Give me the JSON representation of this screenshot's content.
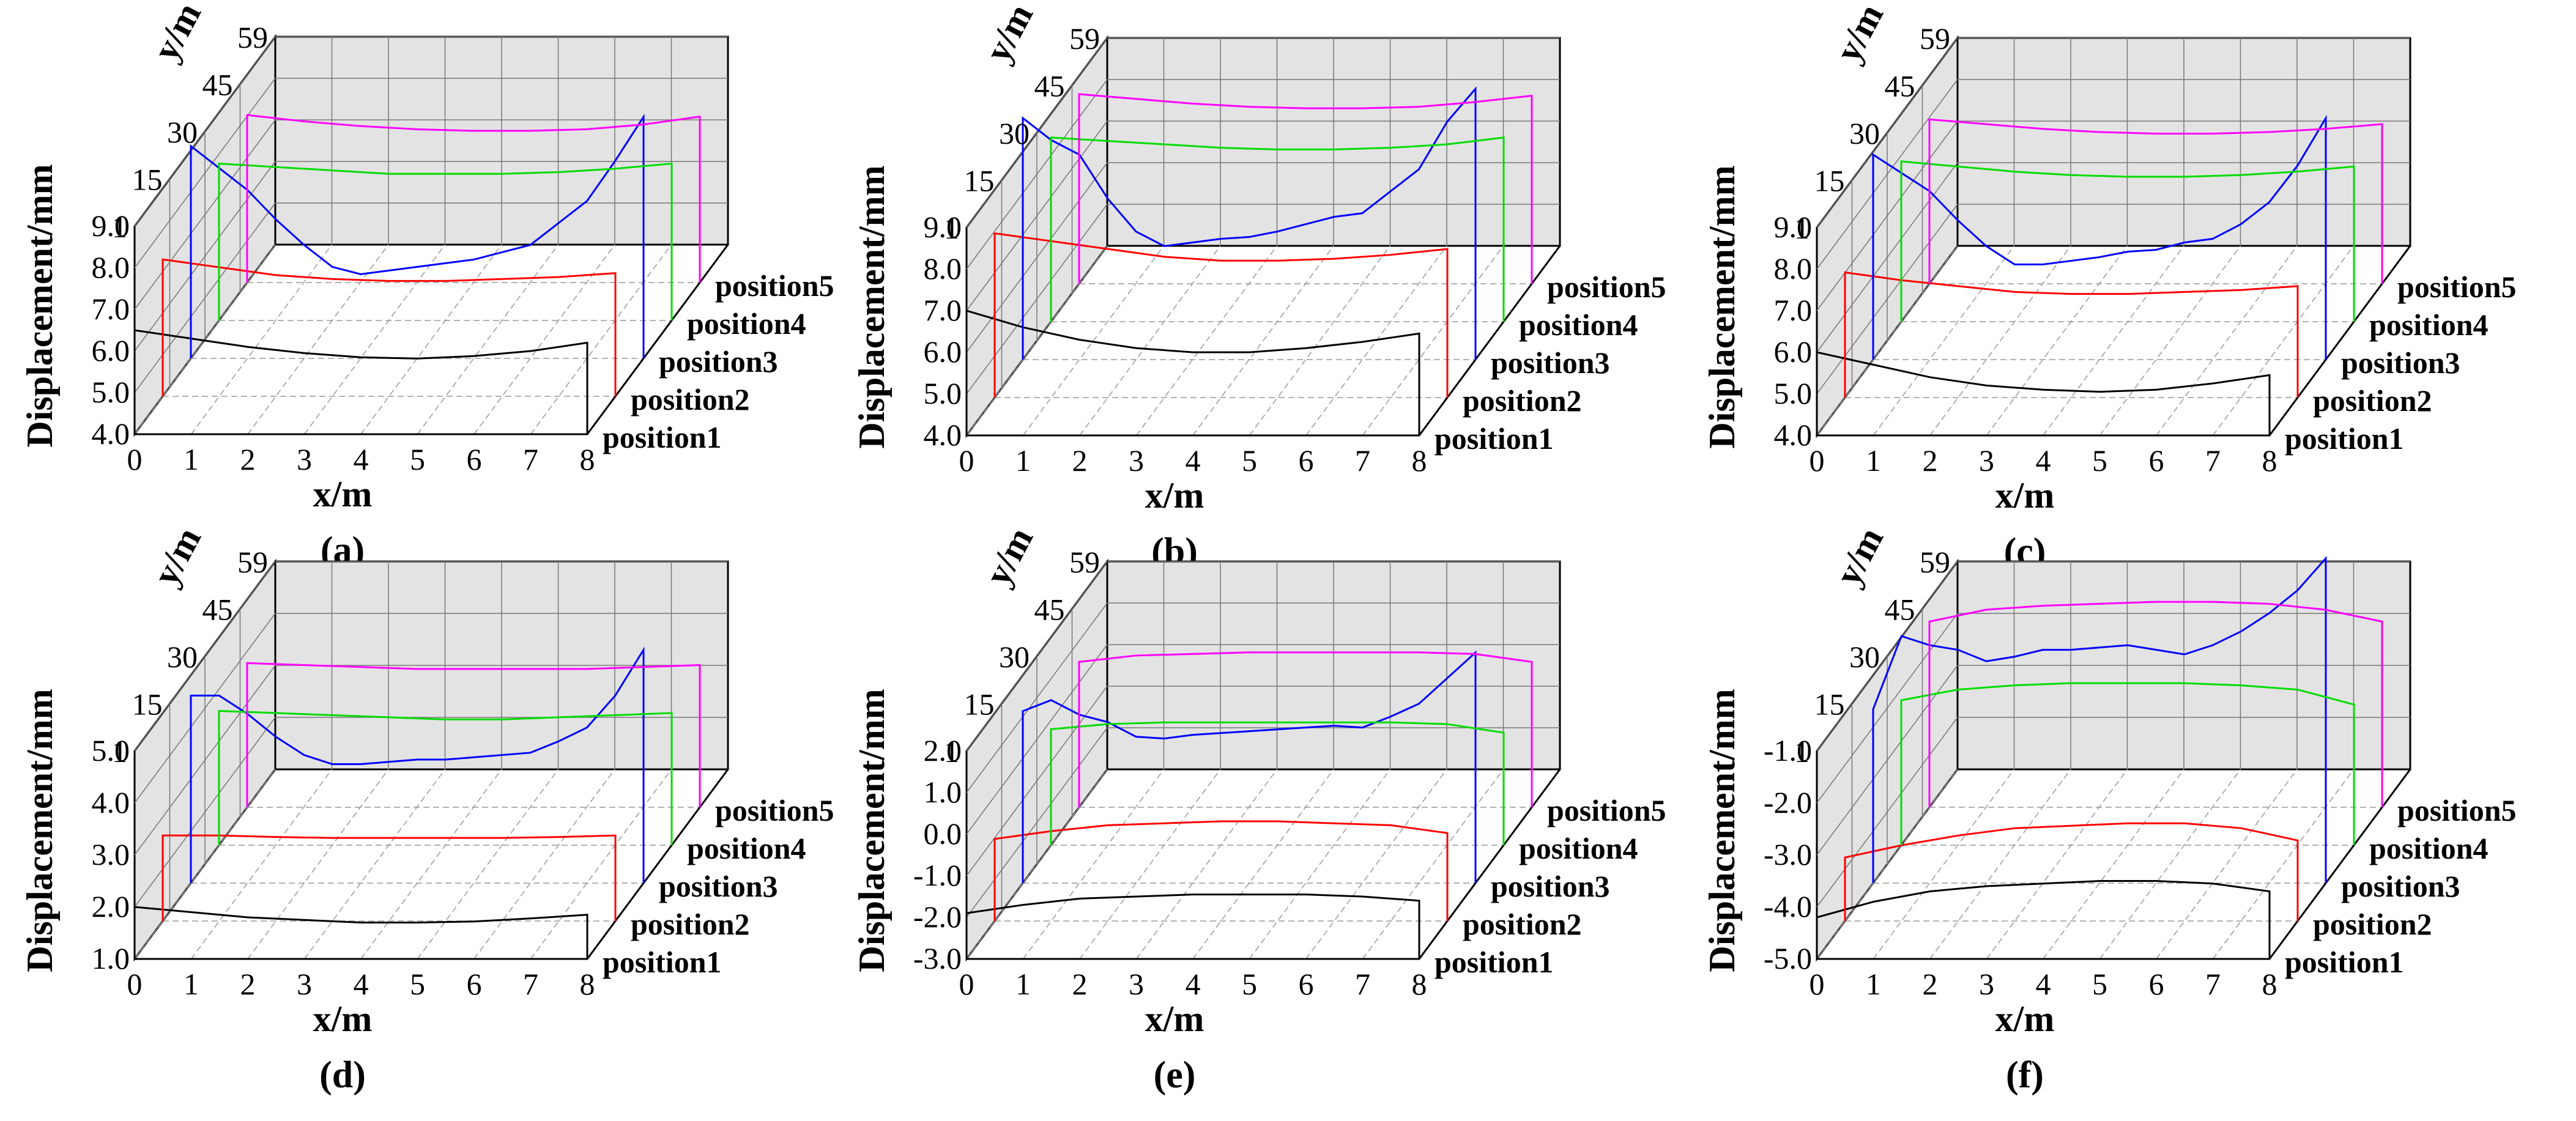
{
  "chart_data": [
    {
      "panel_label": "(a)",
      "type": "line",
      "xlabel": "x/m",
      "ylabel": "y/m",
      "zlabel": "Displacement/mm",
      "xlim": [
        0,
        8
      ],
      "zlim": [
        4.0,
        9.0
      ],
      "x_ticks": [
        "0",
        "1",
        "2",
        "3",
        "4",
        "5",
        "6",
        "7",
        "8"
      ],
      "y_ticks": [
        "1",
        "15",
        "30",
        "45",
        "59"
      ],
      "z_ticks": [
        "4.0",
        "5.0",
        "6.0",
        "7.0",
        "8.0",
        "9.0"
      ],
      "series": [
        {
          "name": "position1",
          "color": "#000000",
          "x": [
            0,
            1,
            2,
            3,
            4,
            5,
            6,
            7,
            8
          ],
          "values": [
            6.5,
            6.3,
            6.1,
            5.95,
            5.85,
            5.82,
            5.88,
            6.0,
            6.2
          ]
        },
        {
          "name": "position2",
          "color": "#ff0000",
          "x": [
            0,
            1,
            2,
            3,
            4,
            5,
            6,
            7,
            8
          ],
          "values": [
            7.5,
            7.3,
            7.1,
            7.0,
            6.95,
            6.95,
            7.0,
            7.05,
            7.15
          ]
        },
        {
          "name": "position3",
          "color": "#0000ff",
          "x": [
            0,
            0.5,
            1,
            1.5,
            2,
            2.5,
            3,
            3.5,
            4,
            4.5,
            5,
            5.5,
            6,
            6.5,
            7,
            7.5,
            8
          ],
          "values": [
            9.8,
            9.2,
            8.6,
            7.8,
            7.1,
            6.5,
            6.3,
            6.4,
            6.5,
            6.6,
            6.7,
            6.9,
            7.1,
            7.7,
            8.3,
            9.4,
            10.6
          ]
        },
        {
          "name": "position4",
          "color": "#00dd00",
          "x": [
            0,
            1,
            2,
            3,
            4,
            5,
            6,
            7,
            8
          ],
          "values": [
            8.6,
            8.5,
            8.4,
            8.3,
            8.3,
            8.3,
            8.35,
            8.45,
            8.6
          ]
        },
        {
          "name": "position5",
          "color": "#ff00ff",
          "x": [
            0,
            1,
            2,
            3,
            4,
            5,
            6,
            7,
            8
          ],
          "values": [
            9.3,
            9.1,
            8.95,
            8.85,
            8.8,
            8.8,
            8.85,
            9.0,
            9.25
          ]
        }
      ]
    },
    {
      "panel_label": "(b)",
      "type": "line",
      "xlabel": "x/m",
      "ylabel": "y/m",
      "zlabel": "Displacement/mm",
      "xlim": [
        0,
        8
      ],
      "zlim": [
        4.0,
        9.0
      ],
      "x_ticks": [
        "0",
        "1",
        "2",
        "3",
        "4",
        "5",
        "6",
        "7",
        "8"
      ],
      "y_ticks": [
        "1",
        "15",
        "30",
        "45",
        "59"
      ],
      "z_ticks": [
        "4.0",
        "5.0",
        "6.0",
        "7.0",
        "8.0",
        "9.0"
      ],
      "series": [
        {
          "name": "position1",
          "color": "#000000",
          "x": [
            0,
            1,
            2,
            3,
            4,
            5,
            6,
            7,
            8
          ],
          "values": [
            7.0,
            6.6,
            6.3,
            6.1,
            6.0,
            6.0,
            6.1,
            6.25,
            6.45
          ]
        },
        {
          "name": "position2",
          "color": "#ff0000",
          "x": [
            0,
            1,
            2,
            3,
            4,
            5,
            6,
            7,
            8
          ],
          "values": [
            8.2,
            8.0,
            7.8,
            7.6,
            7.5,
            7.5,
            7.55,
            7.65,
            7.8
          ]
        },
        {
          "name": "position3",
          "color": "#0000ff",
          "x": [
            0,
            0.5,
            1,
            1.5,
            2,
            2.5,
            3,
            3.5,
            4,
            4.5,
            5,
            5.5,
            6,
            6.5,
            7,
            7.5,
            8
          ],
          "values": [
            10.6,
            10.0,
            9.6,
            8.4,
            7.5,
            7.1,
            7.2,
            7.3,
            7.35,
            7.5,
            7.7,
            7.9,
            8.0,
            8.6,
            9.2,
            10.5,
            11.4
          ]
        },
        {
          "name": "position4",
          "color": "#00dd00",
          "x": [
            0,
            1,
            2,
            3,
            4,
            5,
            6,
            7,
            8
          ],
          "values": [
            9.4,
            9.3,
            9.2,
            9.1,
            9.05,
            9.05,
            9.1,
            9.2,
            9.4
          ]
        },
        {
          "name": "position5",
          "color": "#ff00ff",
          "x": [
            0,
            1,
            2,
            3,
            4,
            5,
            6,
            7,
            8
          ],
          "values": [
            10.0,
            9.85,
            9.7,
            9.6,
            9.55,
            9.55,
            9.6,
            9.75,
            9.95
          ]
        }
      ]
    },
    {
      "panel_label": "(c)",
      "type": "line",
      "xlabel": "x/m",
      "ylabel": "y/m",
      "zlabel": "Displacement/mm",
      "xlim": [
        0,
        8
      ],
      "zlim": [
        4.0,
        9.0
      ],
      "x_ticks": [
        "0",
        "1",
        "2",
        "3",
        "4",
        "5",
        "6",
        "7",
        "8"
      ],
      "y_ticks": [
        "1",
        "15",
        "30",
        "45",
        "59"
      ],
      "z_ticks": [
        "4.0",
        "5.0",
        "6.0",
        "7.0",
        "8.0",
        "9.0"
      ],
      "series": [
        {
          "name": "position1",
          "color": "#000000",
          "x": [
            0,
            1,
            2,
            3,
            4,
            5,
            6,
            7,
            8
          ],
          "values": [
            6.0,
            5.7,
            5.4,
            5.2,
            5.1,
            5.05,
            5.1,
            5.25,
            5.45
          ]
        },
        {
          "name": "position2",
          "color": "#ff0000",
          "x": [
            0,
            1,
            2,
            3,
            4,
            5,
            6,
            7,
            8
          ],
          "values": [
            7.2,
            7.0,
            6.85,
            6.7,
            6.65,
            6.65,
            6.7,
            6.75,
            6.85
          ]
        },
        {
          "name": "position3",
          "color": "#0000ff",
          "x": [
            0,
            0.5,
            1,
            1.5,
            2,
            2.5,
            3,
            3.5,
            4,
            4.5,
            5,
            5.5,
            6,
            6.5,
            7,
            7.5,
            8
          ],
          "values": [
            9.6,
            9.1,
            8.6,
            7.8,
            7.1,
            6.6,
            6.6,
            6.7,
            6.8,
            6.95,
            7.0,
            7.2,
            7.3,
            7.7,
            8.3,
            9.3,
            10.6
          ]
        },
        {
          "name": "position4",
          "color": "#00dd00",
          "x": [
            0,
            1,
            2,
            3,
            4,
            5,
            6,
            7,
            8
          ],
          "values": [
            8.7,
            8.55,
            8.4,
            8.3,
            8.25,
            8.25,
            8.3,
            8.4,
            8.55
          ]
        },
        {
          "name": "position5",
          "color": "#ff00ff",
          "x": [
            0,
            1,
            2,
            3,
            4,
            5,
            6,
            7,
            8
          ],
          "values": [
            9.2,
            9.05,
            8.9,
            8.8,
            8.75,
            8.75,
            8.8,
            8.9,
            9.05
          ]
        }
      ]
    },
    {
      "panel_label": "(d)",
      "type": "line",
      "xlabel": "x/m",
      "ylabel": "y/m",
      "zlabel": "Displacement/mm",
      "xlim": [
        0,
        8
      ],
      "zlim": [
        1.0,
        5.0
      ],
      "x_ticks": [
        "0",
        "1",
        "2",
        "3",
        "4",
        "5",
        "6",
        "7",
        "8"
      ],
      "y_ticks": [
        "1",
        "15",
        "30",
        "45",
        "59"
      ],
      "z_ticks": [
        "1.0",
        "2.0",
        "3.0",
        "4.0",
        "5.0"
      ],
      "series": [
        {
          "name": "position1",
          "color": "#000000",
          "x": [
            0,
            1,
            2,
            3,
            4,
            5,
            6,
            7,
            8
          ],
          "values": [
            2.0,
            1.9,
            1.8,
            1.75,
            1.7,
            1.7,
            1.72,
            1.78,
            1.85
          ]
        },
        {
          "name": "position2",
          "color": "#ff0000",
          "x": [
            0,
            1,
            2,
            3,
            4,
            5,
            6,
            7,
            8
          ],
          "values": [
            2.75,
            2.75,
            2.72,
            2.7,
            2.7,
            2.7,
            2.7,
            2.72,
            2.75
          ]
        },
        {
          "name": "position3",
          "color": "#0000ff",
          "x": [
            0,
            0.5,
            1,
            1.5,
            2,
            2.5,
            3,
            3.5,
            4,
            4.5,
            5,
            5.5,
            6,
            6.5,
            7,
            7.5,
            8
          ],
          "values": [
            5.1,
            5.1,
            4.7,
            4.2,
            3.8,
            3.6,
            3.6,
            3.65,
            3.7,
            3.7,
            3.75,
            3.8,
            3.85,
            4.1,
            4.4,
            5.1,
            6.1
          ]
        },
        {
          "name": "position4",
          "color": "#00dd00",
          "x": [
            0,
            1,
            2,
            3,
            4,
            5,
            6,
            7,
            8
          ],
          "values": [
            4.15,
            4.1,
            4.05,
            4.0,
            3.95,
            3.95,
            4.0,
            4.05,
            4.1
          ]
        },
        {
          "name": "position5",
          "color": "#ff00ff",
          "x": [
            0,
            1,
            2,
            3,
            4,
            5,
            6,
            7,
            8
          ],
          "values": [
            4.65,
            4.6,
            4.55,
            4.5,
            4.5,
            4.5,
            4.5,
            4.55,
            4.6
          ]
        }
      ]
    },
    {
      "panel_label": "(e)",
      "type": "line",
      "xlabel": "x/m",
      "ylabel": "y/m",
      "zlabel": "Displacement/mm",
      "xlim": [
        0,
        8
      ],
      "zlim": [
        -3.0,
        2.0
      ],
      "x_ticks": [
        "0",
        "1",
        "2",
        "3",
        "4",
        "5",
        "6",
        "7",
        "8"
      ],
      "y_ticks": [
        "1",
        "15",
        "30",
        "45",
        "59"
      ],
      "z_ticks": [
        "-3.0",
        "-2.0",
        "-1.0",
        "0.0",
        "1.0",
        "2.0"
      ],
      "series": [
        {
          "name": "position1",
          "color": "#000000",
          "x": [
            0,
            1,
            2,
            3,
            4,
            5,
            6,
            7,
            8
          ],
          "values": [
            -1.9,
            -1.7,
            -1.55,
            -1.5,
            -1.45,
            -1.45,
            -1.45,
            -1.5,
            -1.6
          ]
        },
        {
          "name": "position2",
          "color": "#ff0000",
          "x": [
            0,
            1,
            2,
            3,
            4,
            5,
            6,
            7,
            8
          ],
          "values": [
            -0.9,
            -0.7,
            -0.55,
            -0.5,
            -0.45,
            -0.45,
            -0.5,
            -0.55,
            -0.75
          ]
        },
        {
          "name": "position3",
          "color": "#0000ff",
          "x": [
            0,
            0.5,
            1,
            1.5,
            2,
            2.5,
            3,
            3.5,
            4,
            4.5,
            5,
            5.5,
            6,
            6.5,
            7,
            7.5,
            8
          ],
          "values": [
            1.7,
            2.0,
            1.6,
            1.4,
            1.0,
            0.95,
            1.05,
            1.1,
            1.15,
            1.2,
            1.25,
            1.3,
            1.25,
            1.55,
            1.9,
            2.6,
            3.3
          ]
        },
        {
          "name": "position4",
          "color": "#00dd00",
          "x": [
            0,
            1,
            2,
            3,
            4,
            5,
            6,
            7,
            8
          ],
          "values": [
            0.4,
            0.55,
            0.6,
            0.6,
            0.6,
            0.6,
            0.6,
            0.55,
            0.3
          ]
        },
        {
          "name": "position5",
          "color": "#ff00ff",
          "x": [
            0,
            1,
            2,
            3,
            4,
            5,
            6,
            7,
            8
          ],
          "values": [
            1.6,
            1.8,
            1.85,
            1.9,
            1.9,
            1.9,
            1.9,
            1.85,
            1.6
          ]
        }
      ]
    },
    {
      "panel_label": "(f)",
      "type": "line",
      "xlabel": "x/m",
      "ylabel": "y/m",
      "zlabel": "Displacement/mm",
      "xlim": [
        0,
        8
      ],
      "zlim": [
        -5.0,
        -1.0
      ],
      "x_ticks": [
        "0",
        "1",
        "2",
        "3",
        "4",
        "5",
        "6",
        "7",
        "8"
      ],
      "y_ticks": [
        "1",
        "15",
        "30",
        "45",
        "59"
      ],
      "z_ticks": [
        "-5.0",
        "-4.0",
        "-3.0",
        "-2.0",
        "-1.0"
      ],
      "series": [
        {
          "name": "position1",
          "color": "#000000",
          "x": [
            0,
            1,
            2,
            3,
            4,
            5,
            6,
            7,
            8
          ],
          "values": [
            -4.2,
            -3.9,
            -3.7,
            -3.6,
            -3.55,
            -3.5,
            -3.5,
            -3.55,
            -3.7
          ]
        },
        {
          "name": "position2",
          "color": "#ff0000",
          "x": [
            0,
            1,
            2,
            3,
            4,
            5,
            6,
            7,
            8
          ],
          "values": [
            -3.7,
            -3.45,
            -3.25,
            -3.1,
            -3.05,
            -3.0,
            -3.0,
            -3.1,
            -3.35
          ]
        },
        {
          "name": "position3",
          "color": "#0000ff",
          "x": [
            0,
            0.5,
            1,
            1.5,
            2,
            2.5,
            3,
            3.5,
            4,
            4.5,
            5,
            5.5,
            6,
            6.5,
            7,
            7.5,
            8
          ],
          "values": [
            -1.2,
            0.4,
            0.2,
            0.1,
            -0.15,
            -0.05,
            0.1,
            0.1,
            0.15,
            0.2,
            0.1,
            0.0,
            0.2,
            0.5,
            0.9,
            1.4,
            2.1
          ]
        },
        {
          "name": "position4",
          "color": "#00dd00",
          "x": [
            0,
            1,
            2,
            3,
            4,
            5,
            6,
            7,
            8
          ],
          "values": [
            -1.6,
            -1.35,
            -1.25,
            -1.2,
            -1.2,
            -1.2,
            -1.25,
            -1.35,
            -1.7
          ]
        },
        {
          "name": "position5",
          "color": "#ff00ff",
          "x": [
            0,
            1,
            2,
            3,
            4,
            5,
            6,
            7,
            8
          ],
          "values": [
            -0.3,
            0.0,
            0.1,
            0.15,
            0.2,
            0.2,
            0.15,
            0.0,
            -0.3
          ]
        }
      ]
    }
  ]
}
